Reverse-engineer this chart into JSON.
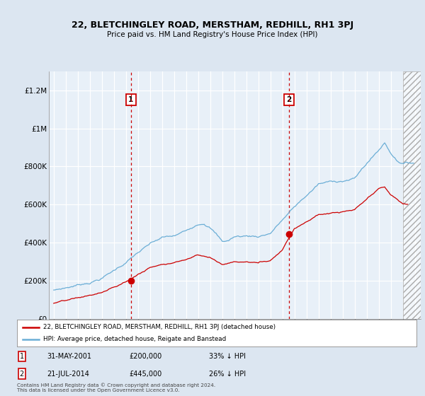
{
  "title": "22, BLETCHINGLEY ROAD, MERSTHAM, REDHILL, RH1 3PJ",
  "subtitle": "Price paid vs. HM Land Registry's House Price Index (HPI)",
  "sale1_label": "31-MAY-2001",
  "sale1_price": 200000,
  "sale1_hpi_pct": "33% ↓ HPI",
  "sale1_x": 2001.417,
  "sale2_label": "21-JUL-2014",
  "sale2_price": 445000,
  "sale2_hpi_pct": "26% ↓ HPI",
  "sale2_x": 2014.542,
  "legend_line1": "22, BLETCHINGLEY ROAD, MERSTHAM, REDHILL, RH1 3PJ (detached house)",
  "legend_line2": "HPI: Average price, detached house, Reigate and Banstead",
  "footnote": "Contains HM Land Registry data © Crown copyright and database right 2024.\nThis data is licensed under the Open Government Licence v3.0.",
  "hpi_color": "#6baed6",
  "sale_color": "#cc0000",
  "background_color": "#dce6f1",
  "plot_bg_color": "#dce6f1",
  "fill_color": "#dce6f1",
  "grid_color": "#c8c8c8",
  "hatch_start": 2024.0,
  "xlim_left": 1994.6,
  "xlim_right": 2025.5,
  "ylim": [
    0,
    1300000
  ],
  "yticks": [
    0,
    200000,
    400000,
    600000,
    800000,
    1000000,
    1200000
  ]
}
